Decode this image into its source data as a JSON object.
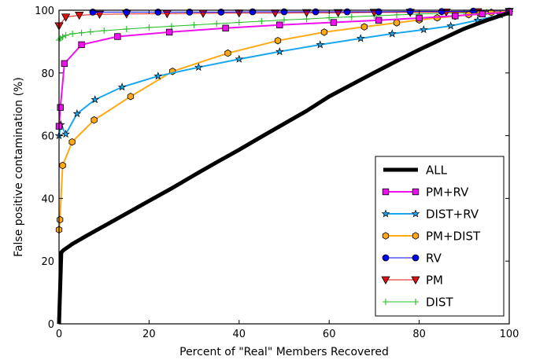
{
  "chart_data": {
    "type": "line",
    "xlabel": "Percent of \"Real\" Members Recovered",
    "ylabel": "False positive contamination (%)",
    "xlim": [
      0,
      100
    ],
    "ylim": [
      0,
      100
    ],
    "xticks": [
      0,
      20,
      40,
      60,
      80,
      100
    ],
    "yticks": [
      0,
      20,
      40,
      60,
      80,
      100
    ],
    "grid": false,
    "legend_position": "lower-right",
    "series": [
      {
        "name": "ALL",
        "color": "#000000",
        "marker": "none",
        "line_width": 5,
        "x": [
          0,
          0.5,
          1,
          3,
          6,
          10,
          15,
          20,
          25,
          30,
          35,
          40,
          45,
          50,
          55,
          60,
          65,
          70,
          75,
          80,
          85,
          90,
          95,
          100
        ],
        "y": [
          0,
          22.8,
          23.5,
          25.5,
          28,
          31.2,
          35.2,
          39.2,
          43.2,
          47.4,
          51.5,
          55.5,
          59.7,
          63.8,
          67.9,
          72.5,
          76.3,
          80.1,
          83.8,
          87.4,
          90.8,
          94.1,
          96.8,
          99.2
        ]
      },
      {
        "name": "PM+RV",
        "color": "#ee11ee",
        "marker": "square",
        "line_width": 2,
        "x": [
          0,
          0.3,
          1.2,
          5,
          13,
          24.5,
          37,
          49,
          61,
          71,
          80,
          88,
          94,
          100
        ],
        "y": [
          63,
          69,
          83,
          89,
          91.6,
          93,
          94.3,
          95.3,
          96.1,
          96.8,
          97.5,
          98.2,
          98.8,
          99.4
        ]
      },
      {
        "name": "DIST+RV",
        "color": "#1aa7ee",
        "marker": "star",
        "line_width": 2,
        "x": [
          0,
          0.4,
          1.5,
          4,
          8,
          14,
          22,
          31,
          40,
          49,
          58,
          67,
          74,
          81,
          87,
          93,
          98,
          100
        ],
        "y": [
          60,
          63.5,
          60.5,
          67,
          71.5,
          75.5,
          79,
          81.8,
          84.4,
          86.8,
          89,
          91,
          92.5,
          93.8,
          95,
          96.8,
          98.5,
          99.3
        ]
      },
      {
        "name": "PM+DIST",
        "color": "#ffa914",
        "marker": "hexagon",
        "line_width": 2,
        "x": [
          0,
          0.2,
          0.8,
          2.9,
          7.8,
          15.9,
          25.2,
          37.5,
          48.6,
          58.9,
          67.8,
          75,
          80,
          84,
          88,
          91,
          93.5,
          96,
          100
        ],
        "y": [
          30,
          33.2,
          50.5,
          58,
          65,
          72.5,
          80.5,
          86.3,
          90.3,
          93,
          94.7,
          96,
          96.9,
          97.6,
          98.1,
          98.6,
          99,
          99.3,
          99.6
        ]
      },
      {
        "name": "RV",
        "color": "#0000ee",
        "marker": "circle",
        "line_width": 1,
        "x": [
          7.5,
          15,
          22,
          29,
          36,
          43,
          50,
          57,
          64,
          71,
          78,
          85,
          92,
          100
        ],
        "y": [
          99.4,
          99.4,
          99.4,
          99.4,
          99.4,
          99.5,
          99.5,
          99.5,
          99.5,
          99.5,
          99.6,
          99.6,
          99.7,
          99.7
        ]
      },
      {
        "name": "PM",
        "color": "#dd1111",
        "marker": "triangle-down",
        "line_width": 1,
        "x": [
          0,
          1.5,
          4.5,
          9,
          15,
          24,
          32,
          40,
          48,
          55,
          62,
          70,
          78,
          86,
          93,
          100
        ],
        "y": [
          95,
          97.8,
          98.4,
          98.7,
          98.8,
          98.9,
          99,
          99.1,
          99.1,
          99.2,
          99.2,
          99.3,
          99.3,
          99.4,
          99.5,
          99.6
        ]
      },
      {
        "name": "DIST",
        "color": "#22bb22",
        "marker": "plus",
        "line_width": 1,
        "x": [
          0,
          0.3,
          0.8,
          1.5,
          3,
          5,
          7,
          10,
          15,
          20,
          25,
          30,
          35,
          40,
          45,
          50,
          55,
          60,
          65,
          70,
          75,
          80,
          85,
          90,
          95,
          100
        ],
        "y": [
          90.5,
          91,
          91.5,
          92,
          92.5,
          92.8,
          93.1,
          93.5,
          94,
          94.5,
          94.9,
          95.3,
          95.7,
          96.1,
          96.5,
          96.9,
          97.2,
          97.6,
          97.9,
          98.2,
          98.5,
          98.8,
          99,
          99.2,
          99.4,
          99.6
        ]
      }
    ]
  }
}
